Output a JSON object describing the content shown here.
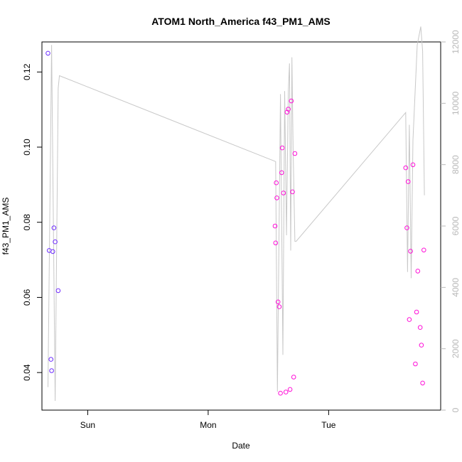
{
  "chart_data": {
    "type": "scatter",
    "title": "ATOM1 North_America f43_PM1_AMS",
    "xlabel": "Date",
    "ylabel": "f43_PM1_AMS",
    "x_ticks": [
      "Sun",
      "Mon",
      "Tue"
    ],
    "y_ticks": [
      "0.04",
      "0.06",
      "0.08",
      "0.10",
      "0.12"
    ],
    "y2_ticks": [
      "0",
      "2000",
      "4000",
      "6000",
      "8000",
      "10000",
      "12000"
    ],
    "ylim": [
      0.03,
      0.128
    ],
    "y2lim": [
      0,
      12000
    ],
    "xlim_days": [
      -0.38,
      2.93
    ],
    "grid": false,
    "colors": {
      "line": "#c8c8c8",
      "right_axis": "#b8b8b8",
      "axes": "#000000",
      "point_start": "#6a2cff",
      "point_end": "#ff10d8"
    },
    "series": [
      {
        "type": "points",
        "x_days": [
          -0.33,
          -0.32,
          -0.305,
          -0.3,
          -0.29,
          -0.28,
          -0.27,
          -0.245,
          1.555,
          1.56,
          1.565,
          1.57,
          1.58,
          1.59,
          1.6,
          1.61,
          1.615,
          1.625,
          1.645,
          1.655,
          1.665,
          1.68,
          1.69,
          1.7,
          1.71,
          1.72,
          2.64,
          2.65,
          2.66,
          2.67,
          2.68,
          2.7,
          2.72,
          2.73,
          2.74,
          2.76,
          2.77,
          2.78,
          2.79
        ],
        "y": [
          0.125,
          0.0725,
          0.0435,
          0.0405,
          0.0722,
          0.0785,
          0.0748,
          0.0618,
          0.079,
          0.0745,
          0.0905,
          0.0865,
          0.0588,
          0.0575,
          0.0345,
          0.0932,
          0.0998,
          0.0878,
          0.0348,
          0.1093,
          0.1101,
          0.0355,
          0.1123,
          0.0881,
          0.0388,
          0.0983,
          0.0945,
          0.0785,
          0.0908,
          0.0541,
          0.0723,
          0.0953,
          0.0423,
          0.0561,
          0.067,
          0.052,
          0.0473,
          0.0372,
          0.0726
        ]
      },
      {
        "type": "line",
        "axis": "right",
        "x_days": [
          -0.33,
          -0.3,
          -0.27,
          -0.245,
          -0.235,
          1.56,
          1.575,
          1.6,
          1.62,
          1.635,
          1.65,
          1.665,
          1.675,
          1.685,
          1.695,
          1.705,
          1.72,
          1.73,
          2.64,
          2.655,
          2.67,
          2.685,
          2.7,
          2.735,
          2.765,
          2.78,
          2.795
        ],
        "y": [
          750,
          11900,
          300,
          10500,
          10900,
          8100,
          600,
          10300,
          1800,
          10400,
          5700,
          10400,
          11300,
          5200,
          11500,
          8500,
          5500,
          5500,
          9700,
          4500,
          9300,
          4300,
          8800,
          11900,
          12500,
          11700,
          7000
        ]
      }
    ]
  }
}
